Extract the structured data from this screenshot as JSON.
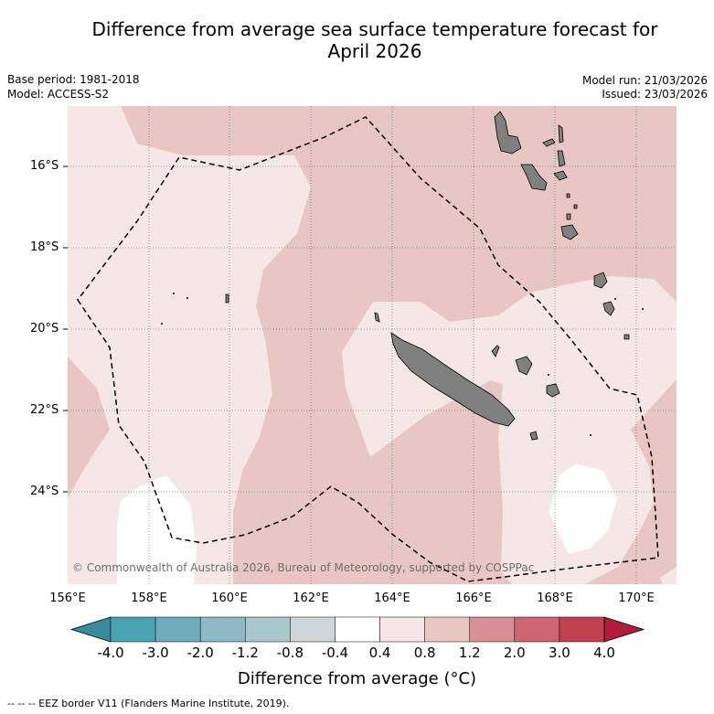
{
  "header": {
    "title_line1": "Difference from average sea surface temperature forecast for",
    "title_line2": "April 2026",
    "base_period": "Base period: 1981-2018",
    "model": "Model: ACCESS-S2",
    "model_run": "Model run: 21/03/2026",
    "issued": "Issued: 23/03/2026"
  },
  "map": {
    "lat_labels": [
      "16°S",
      "18°S",
      "20°S",
      "22°S",
      "24°S"
    ],
    "lon_labels": [
      "156°E",
      "158°E",
      "160°E",
      "162°E",
      "164°E",
      "166°E",
      "168°E",
      "170°E"
    ],
    "copyright": "© Commonwealth of Australia 2026, Bureau of Meteorology, supported by COSPPac",
    "colors": {
      "land": "#808080",
      "band_0p4_0p8": "#f5e7e5",
      "band_0p8_1p2": "#e8c7c2",
      "band_neutral": "#ffffff",
      "eez_line": "#000000"
    }
  },
  "colorbar": {
    "title": "Difference from average (°C)",
    "tick_labels": [
      "-4.0",
      "-3.0",
      "-2.0",
      "-1.2",
      "-0.8",
      "-0.4",
      "0.4",
      "0.8",
      "1.2",
      "2.0",
      "3.0",
      "4.0"
    ],
    "colors": [
      "#3b8a9a",
      "#48a4b3",
      "#6cacbb",
      "#8db8c4",
      "#a9c8cc",
      "#cfd6d8",
      "#ffffff",
      "#f5e7e5",
      "#e8c7c2",
      "#d88f96",
      "#cc6670",
      "#c0414f",
      "#b01c3a"
    ]
  },
  "footnote": "-- -- -- EEZ border V11 (Flanders Marine Institute, 2019)."
}
